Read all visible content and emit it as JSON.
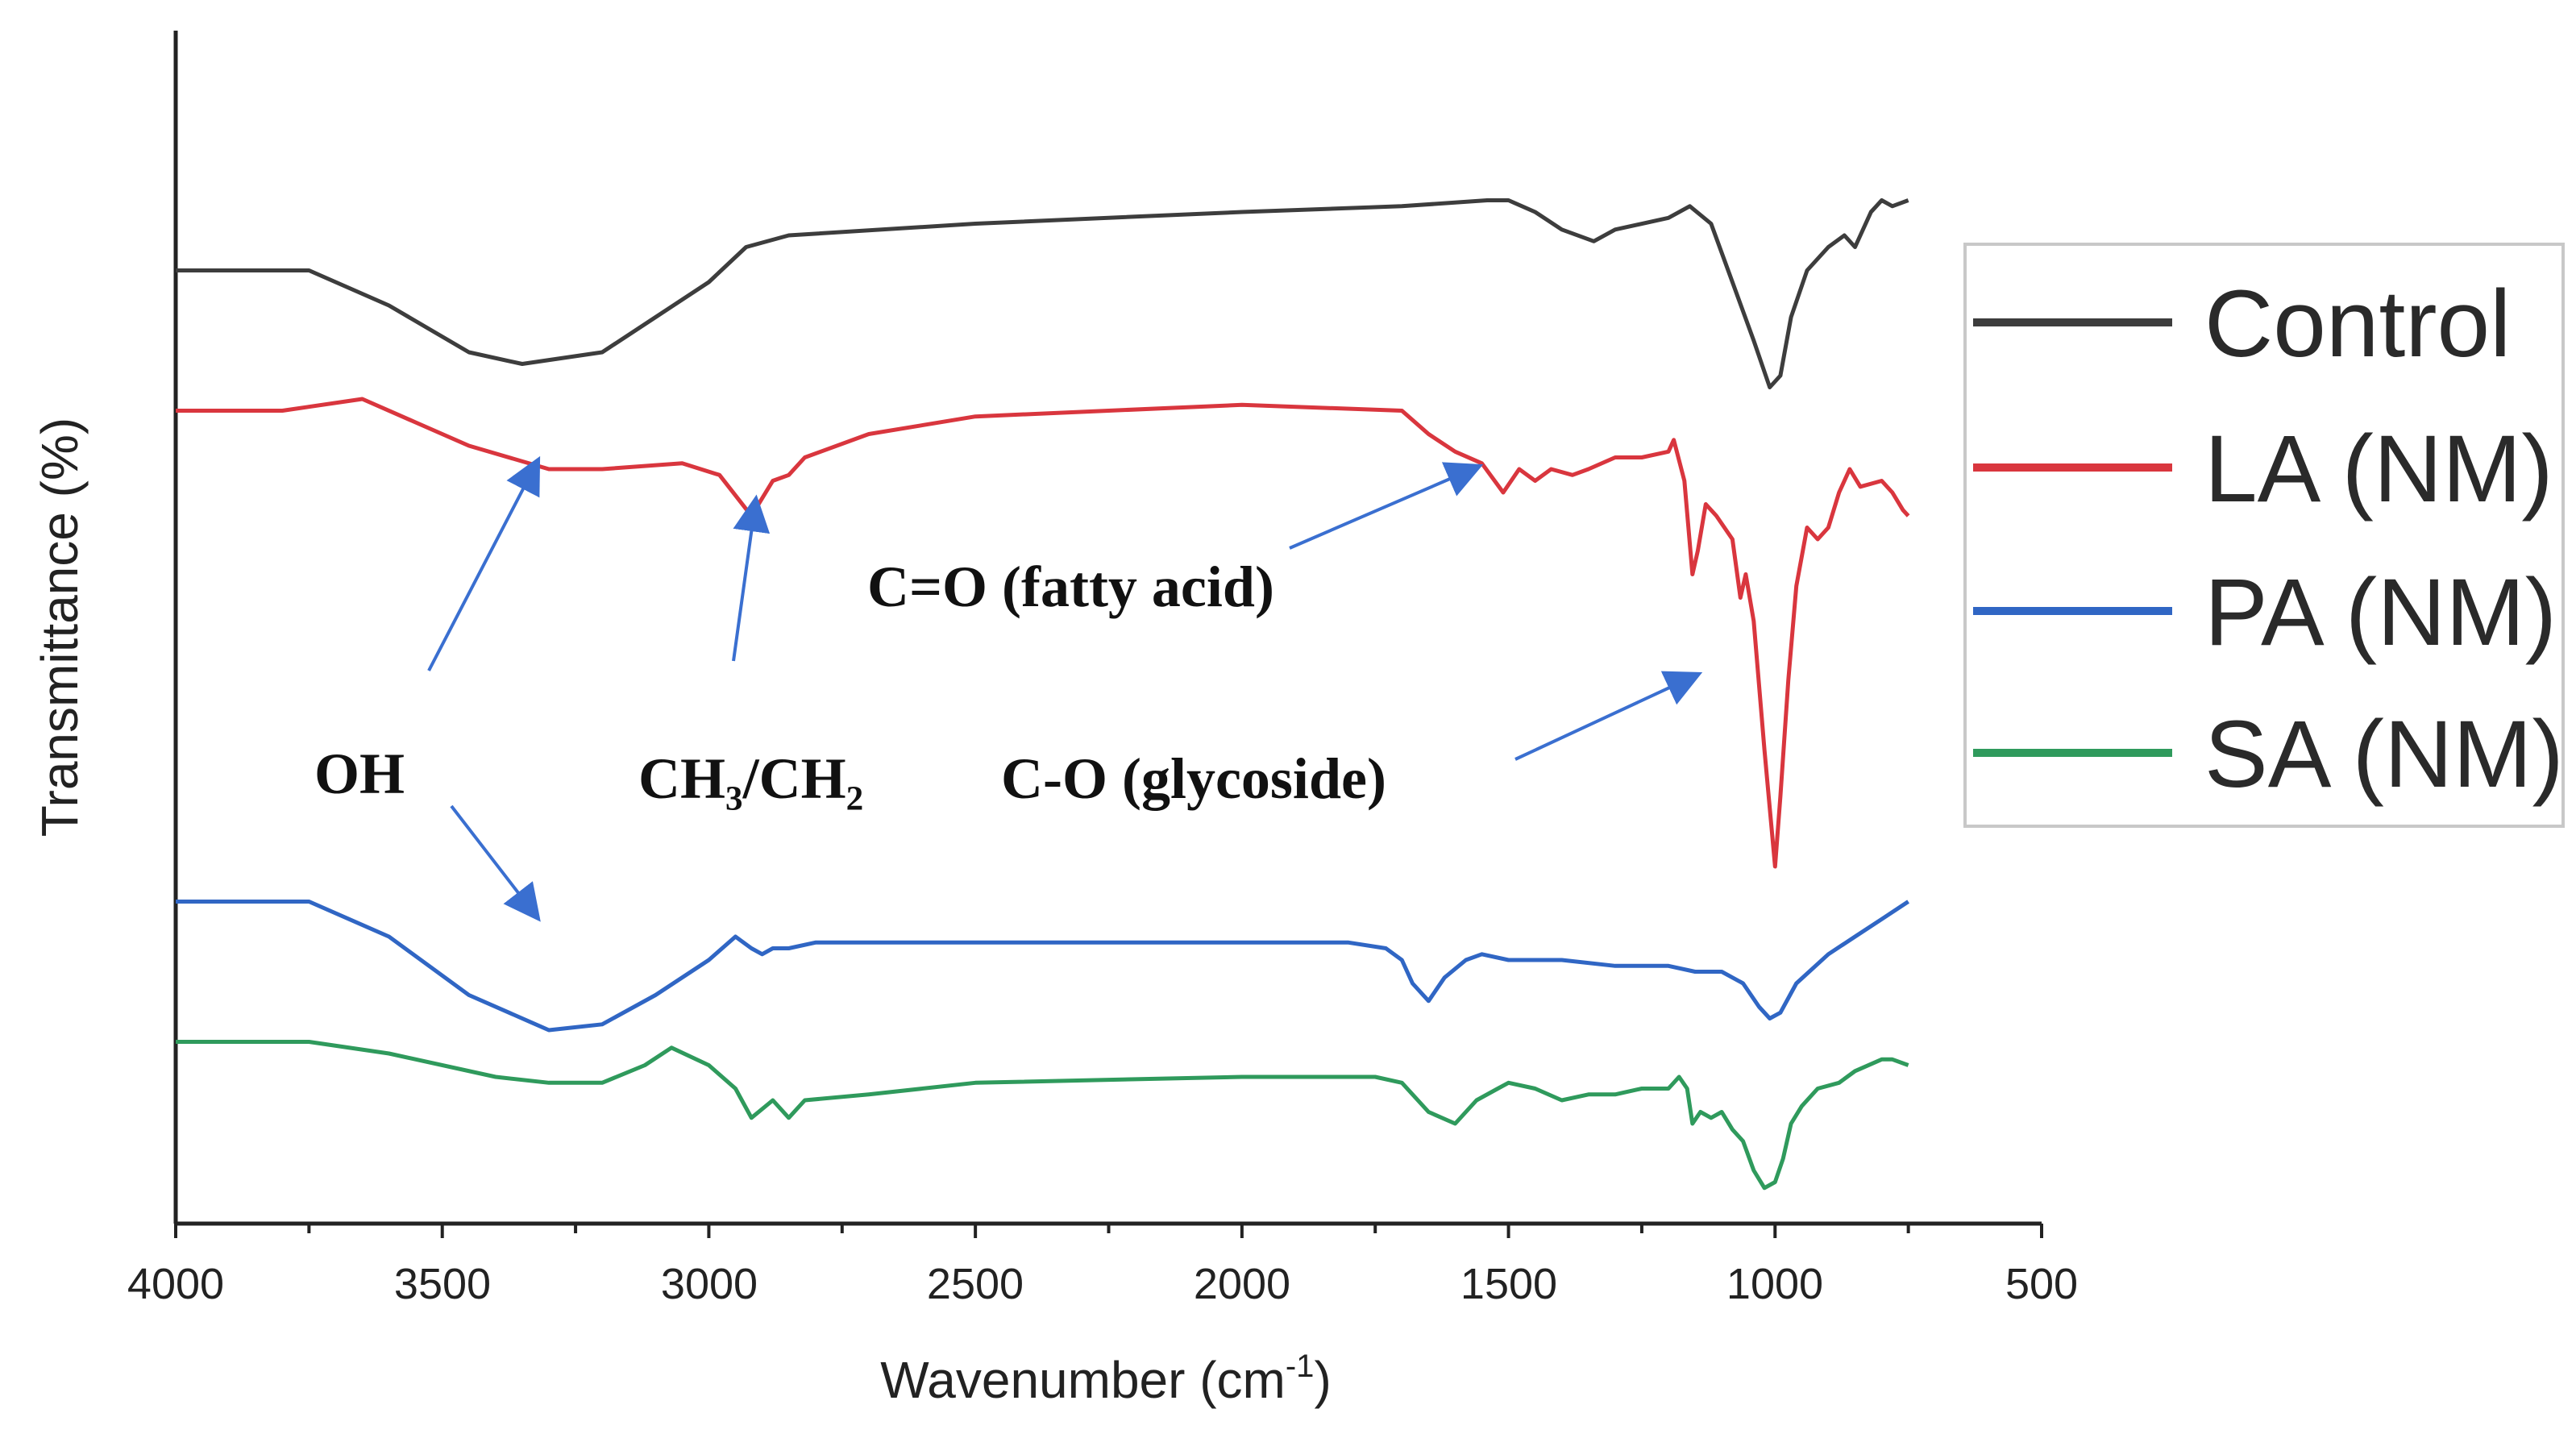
{
  "chart_data": {
    "type": "line",
    "title": "",
    "xlabel": "Wavenumber (cm",
    "xlabel_sup": "-1",
    "xlabel_close": ")",
    "ylabel": "Transmittance (%)",
    "xlim": [
      4000,
      500
    ],
    "ylim": [
      0,
      100
    ],
    "x_reversed": true,
    "xticks": [
      4000,
      3500,
      3000,
      2500,
      2000,
      1500,
      1000,
      500
    ],
    "grid": false,
    "legend_position": "right",
    "series": [
      {
        "name": "Control",
        "color": "#3d3d3d",
        "points": [
          [
            4000,
            81
          ],
          [
            3750,
            81
          ],
          [
            3600,
            78
          ],
          [
            3450,
            74
          ],
          [
            3350,
            73
          ],
          [
            3200,
            74
          ],
          [
            3100,
            77
          ],
          [
            3000,
            80
          ],
          [
            2930,
            83
          ],
          [
            2850,
            84
          ],
          [
            2500,
            85
          ],
          [
            2000,
            86
          ],
          [
            1700,
            86.5
          ],
          [
            1540,
            87
          ],
          [
            1500,
            87
          ],
          [
            1450,
            86
          ],
          [
            1400,
            84.5
          ],
          [
            1340,
            83.5
          ],
          [
            1300,
            84.5
          ],
          [
            1200,
            85.5
          ],
          [
            1160,
            86.5
          ],
          [
            1120,
            85
          ],
          [
            1080,
            80
          ],
          [
            1040,
            75
          ],
          [
            1010,
            71
          ],
          [
            990,
            72
          ],
          [
            970,
            77
          ],
          [
            940,
            81
          ],
          [
            900,
            83
          ],
          [
            870,
            84
          ],
          [
            850,
            83
          ],
          [
            820,
            86
          ],
          [
            800,
            87
          ],
          [
            780,
            86.5
          ],
          [
            750,
            87
          ]
        ]
      },
      {
        "name": "LA (NM)",
        "color": "#d9363e",
        "points": [
          [
            4000,
            69
          ],
          [
            3800,
            69
          ],
          [
            3650,
            70
          ],
          [
            3550,
            68
          ],
          [
            3450,
            66
          ],
          [
            3300,
            64
          ],
          [
            3200,
            64
          ],
          [
            3050,
            64.5
          ],
          [
            2980,
            63.5
          ],
          [
            2920,
            60
          ],
          [
            2880,
            63
          ],
          [
            2850,
            63.5
          ],
          [
            2820,
            65
          ],
          [
            2700,
            67
          ],
          [
            2500,
            68.5
          ],
          [
            2000,
            69.5
          ],
          [
            1700,
            69
          ],
          [
            1650,
            67
          ],
          [
            1600,
            65.5
          ],
          [
            1550,
            64.5
          ],
          [
            1510,
            62
          ],
          [
            1480,
            64
          ],
          [
            1450,
            63
          ],
          [
            1420,
            64
          ],
          [
            1380,
            63.5
          ],
          [
            1350,
            64
          ],
          [
            1300,
            65
          ],
          [
            1250,
            65
          ],
          [
            1200,
            65.5
          ],
          [
            1190,
            66.5
          ],
          [
            1170,
            63
          ],
          [
            1155,
            55
          ],
          [
            1145,
            57
          ],
          [
            1130,
            61
          ],
          [
            1110,
            60
          ],
          [
            1080,
            58
          ],
          [
            1065,
            53
          ],
          [
            1055,
            55
          ],
          [
            1040,
            51
          ],
          [
            1020,
            40
          ],
          [
            1010,
            35
          ],
          [
            1000,
            30
          ],
          [
            990,
            36
          ],
          [
            975,
            46
          ],
          [
            960,
            54
          ],
          [
            940,
            59
          ],
          [
            920,
            58
          ],
          [
            900,
            59
          ],
          [
            880,
            62
          ],
          [
            860,
            64
          ],
          [
            840,
            62.5
          ],
          [
            800,
            63
          ],
          [
            780,
            62
          ],
          [
            760,
            60.5
          ],
          [
            750,
            60
          ]
        ]
      },
      {
        "name": "PA (NM)",
        "color": "#3066c4",
        "points": [
          [
            4000,
            27
          ],
          [
            3750,
            27
          ],
          [
            3600,
            24
          ],
          [
            3450,
            19
          ],
          [
            3300,
            16
          ],
          [
            3200,
            16.5
          ],
          [
            3100,
            19
          ],
          [
            3000,
            22
          ],
          [
            2950,
            24
          ],
          [
            2920,
            23
          ],
          [
            2900,
            22.5
          ],
          [
            2880,
            23
          ],
          [
            2850,
            23
          ],
          [
            2800,
            23.5
          ],
          [
            2500,
            23.5
          ],
          [
            2000,
            23.5
          ],
          [
            1800,
            23.5
          ],
          [
            1730,
            23
          ],
          [
            1700,
            22
          ],
          [
            1680,
            20
          ],
          [
            1650,
            18.5
          ],
          [
            1620,
            20.5
          ],
          [
            1580,
            22
          ],
          [
            1550,
            22.5
          ],
          [
            1500,
            22
          ],
          [
            1400,
            22
          ],
          [
            1300,
            21.5
          ],
          [
            1200,
            21.5
          ],
          [
            1150,
            21
          ],
          [
            1100,
            21
          ],
          [
            1060,
            20
          ],
          [
            1030,
            18
          ],
          [
            1010,
            17
          ],
          [
            990,
            17.5
          ],
          [
            960,
            20
          ],
          [
            900,
            22.5
          ],
          [
            850,
            24
          ],
          [
            800,
            25.5
          ],
          [
            750,
            27
          ]
        ]
      },
      {
        "name": "SA (NM)",
        "color": "#2f9a5c",
        "points": [
          [
            4000,
            15
          ],
          [
            3750,
            15
          ],
          [
            3600,
            14
          ],
          [
            3400,
            12
          ],
          [
            3300,
            11.5
          ],
          [
            3200,
            11.5
          ],
          [
            3120,
            13
          ],
          [
            3070,
            14.5
          ],
          [
            3000,
            13
          ],
          [
            2950,
            11
          ],
          [
            2920,
            8.5
          ],
          [
            2880,
            10
          ],
          [
            2850,
            8.5
          ],
          [
            2820,
            10
          ],
          [
            2700,
            10.5
          ],
          [
            2500,
            11.5
          ],
          [
            2000,
            12
          ],
          [
            1750,
            12
          ],
          [
            1700,
            11.5
          ],
          [
            1650,
            9
          ],
          [
            1600,
            8
          ],
          [
            1560,
            10
          ],
          [
            1520,
            11
          ],
          [
            1500,
            11.5
          ],
          [
            1450,
            11
          ],
          [
            1400,
            10
          ],
          [
            1350,
            10.5
          ],
          [
            1300,
            10.5
          ],
          [
            1250,
            11
          ],
          [
            1200,
            11
          ],
          [
            1180,
            12
          ],
          [
            1165,
            11
          ],
          [
            1155,
            8
          ],
          [
            1140,
            9
          ],
          [
            1120,
            8.5
          ],
          [
            1100,
            9
          ],
          [
            1080,
            7.5
          ],
          [
            1060,
            6.5
          ],
          [
            1040,
            4
          ],
          [
            1020,
            2.5
          ],
          [
            1000,
            3
          ],
          [
            985,
            5
          ],
          [
            970,
            8
          ],
          [
            950,
            9.5
          ],
          [
            920,
            11
          ],
          [
            880,
            11.5
          ],
          [
            850,
            12.5
          ],
          [
            800,
            13.5
          ],
          [
            780,
            13.5
          ],
          [
            750,
            13
          ]
        ]
      }
    ],
    "annotations": [
      {
        "text": "OH"
      },
      {
        "text": "CH₃/CH₂"
      },
      {
        "text": "C=O (fatty acid)"
      },
      {
        "text": "C-O (glycoside)"
      }
    ]
  }
}
